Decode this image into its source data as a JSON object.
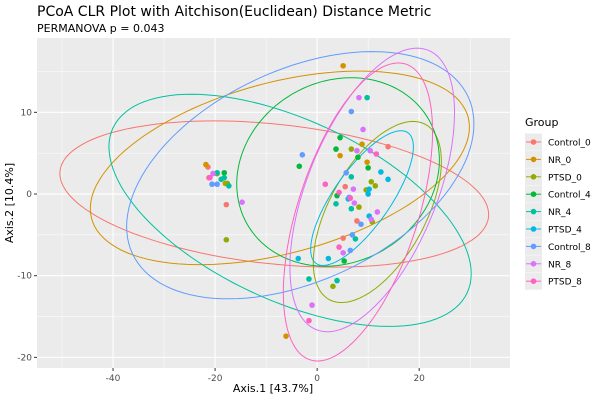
{
  "chart_data": {
    "type": "scatter",
    "title": "PCoA CLR Plot with Aitchison(Euclidean) Distance Metric",
    "subtitle": "PERMANOVA p = 0.043",
    "xlabel": "Axis.1  [43.7%]",
    "ylabel": "Axis.2  [10.4%]",
    "xlim": [
      -54.9,
      37.8
    ],
    "ylim": [
      -21.3,
      19.1
    ],
    "xticks": [
      -40,
      -20,
      0,
      20
    ],
    "yticks": [
      -20,
      -10,
      0,
      10
    ],
    "grid": true,
    "legend": {
      "title": "Group",
      "placement": "right"
    },
    "series": [
      {
        "name": "Control_0",
        "color": "#F8766D",
        "points": [
          [
            -21.4,
            3.3
          ],
          [
            -21.2,
            2.0
          ],
          [
            -17.8,
            -1.3
          ],
          [
            13.9,
            5.8
          ],
          [
            5.5,
            0.9
          ],
          [
            7.8,
            -3.3
          ],
          [
            5.1,
            -5.4
          ]
        ],
        "ellipse": {
          "center": [
            -8.4,
            0.0
          ],
          "axis_a": [
            42.0,
            -2.8
          ],
          "axis_b": [
            -1.4,
            -8.5
          ]
        }
      },
      {
        "name": "NR_0",
        "color": "#D39200",
        "points": [
          [
            -21.8,
            3.6
          ],
          [
            -19.6,
            2.5
          ],
          [
            -18.0,
            1.3
          ],
          [
            5.1,
            15.7
          ],
          [
            8.8,
            6.1
          ],
          [
            4.5,
            4.7
          ],
          [
            9.8,
            3.9
          ],
          [
            -6.1,
            -17.4
          ]
        ],
        "ellipse": {
          "center": [
            -7.3,
            3.2
          ],
          "axis_a": [
            36.9,
            6.2
          ],
          "axis_b": [
            4.3,
            -10.1
          ]
        }
      },
      {
        "name": "PTSD_0",
        "color": "#93AA00",
        "points": [
          [
            -17.6,
            1.3
          ],
          [
            -17.8,
            -5.6
          ],
          [
            6.7,
            5.5
          ],
          [
            10.6,
            1.5
          ],
          [
            11.4,
            1.0
          ],
          [
            9.6,
            0.5
          ],
          [
            8.2,
            -1.6
          ],
          [
            10.8,
            -3.4
          ],
          [
            3.1,
            -11.3
          ]
        ],
        "ellipse": {
          "center": [
            11.8,
            -2.2
          ],
          "axis_a": [
            9.5,
            10.7
          ],
          "axis_b": [
            8.2,
            -2.9
          ]
        }
      },
      {
        "name": "Control_4",
        "color": "#00BA38",
        "points": [
          [
            -18.2,
            2.6
          ],
          [
            4.5,
            6.9
          ],
          [
            3.7,
            5.5
          ],
          [
            8.0,
            4.5
          ],
          [
            10.0,
            3.2
          ],
          [
            -3.5,
            3.4
          ],
          [
            3.9,
            -0.2
          ],
          [
            5.3,
            -8.2
          ]
        ],
        "ellipse": {
          "center": [
            4.1,
            2.7
          ],
          "axis_a": [
            17.8,
            6.4
          ],
          "axis_b": [
            8.8,
            -9.6
          ]
        }
      },
      {
        "name": "NR_4",
        "color": "#00C19F",
        "points": [
          [
            -19.6,
            2.6
          ],
          [
            -18.8,
            1.8
          ],
          [
            -18.2,
            2.0
          ],
          [
            -17.3,
            1.0
          ],
          [
            9.8,
            11.8
          ],
          [
            6.7,
            2.1
          ],
          [
            3.7,
            -1.2
          ],
          [
            6.7,
            -1.8
          ],
          [
            7.5,
            -5.5
          ],
          [
            -1.6,
            -10.4
          ],
          [
            3.9,
            -10.6
          ]
        ],
        "ellipse": {
          "center": [
            -5.3,
            -2.0
          ],
          "axis_a": [
            34.7,
            -10.1
          ],
          "axis_b": [
            -7.5,
            -10.0
          ]
        }
      },
      {
        "name": "PTSD_4",
        "color": "#00B9E3",
        "points": [
          [
            12.5,
            2.7
          ],
          [
            13.9,
            1.8
          ],
          [
            10.2,
            0.6
          ],
          [
            10.0,
            0.0
          ],
          [
            6.1,
            -0.6
          ],
          [
            10.2,
            -2.7
          ],
          [
            2.2,
            -7.9
          ],
          [
            -3.7,
            -7.9
          ]
        ],
        "ellipse": {
          "center": [
            8.8,
            -0.5
          ],
          "axis_a": [
            9.0,
            8.0
          ],
          "axis_b": [
            4.5,
            -2.0
          ]
        }
      },
      {
        "name": "Control_8",
        "color": "#619CFF",
        "points": [
          [
            -20.6,
            1.2
          ],
          [
            -19.6,
            1.2
          ],
          [
            6.7,
            10.1
          ],
          [
            -2.9,
            4.8
          ],
          [
            5.7,
            2.6
          ],
          [
            6.3,
            -0.4
          ],
          [
            8.6,
            -3.7
          ],
          [
            6.9,
            -5.0
          ],
          [
            6.5,
            -6.9
          ]
        ],
        "ellipse": {
          "center": [
            -3.3,
            2.3
          ],
          "axis_a": [
            32.9,
            9.6
          ],
          "axis_b": [
            8.7,
            -11.7
          ]
        }
      },
      {
        "name": "NR_8",
        "color": "#DB72FB",
        "points": [
          [
            -20.4,
            2.5
          ],
          [
            -14.7,
            -1.0
          ],
          [
            8.2,
            11.8
          ],
          [
            9.0,
            7.9
          ],
          [
            7.8,
            5.3
          ],
          [
            10.4,
            5.3
          ],
          [
            7.1,
            0.6
          ],
          [
            7.3,
            -1.1
          ],
          [
            11.8,
            -2.2
          ],
          [
            10.6,
            -3.1
          ],
          [
            5.1,
            -7.2
          ],
          [
            -1.0,
            -13.6
          ]
        ],
        "ellipse": {
          "center": [
            10.8,
            0.5
          ],
          "axis_a": [
            11.0,
            17.1
          ],
          "axis_b": [
            11.8,
            -3.0
          ]
        }
      },
      {
        "name": "PTSD_8",
        "color": "#FF61C3",
        "points": [
          [
            -21.0,
            2.0
          ],
          [
            11.6,
            4.9
          ],
          [
            1.6,
            1.2
          ],
          [
            4.3,
            0.2
          ],
          [
            6.5,
            -0.5
          ],
          [
            4.3,
            -6.5
          ],
          [
            -1.6,
            -15.5
          ]
        ],
        "ellipse": {
          "center": [
            8.0,
            -2.2
          ],
          "axis_a": [
            9.4,
            18.1
          ],
          "axis_b": [
            11.2,
            -2.3
          ]
        }
      }
    ]
  }
}
